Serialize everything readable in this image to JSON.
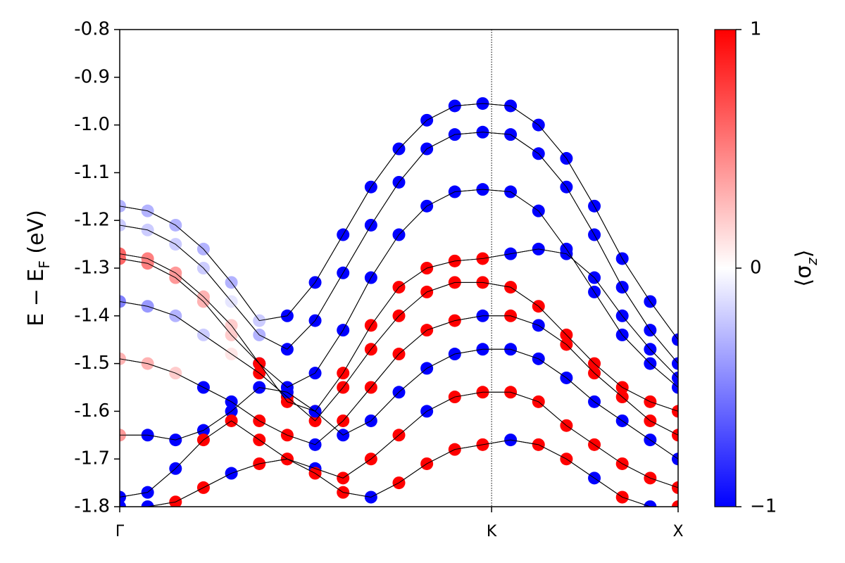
{
  "chart_data": {
    "type": "band",
    "ylabel": [
      "E − E",
      "F",
      " (eV)"
    ],
    "x": [
      0,
      0.05,
      0.1,
      0.15,
      0.2,
      0.25,
      0.3,
      0.35,
      0.4,
      0.45,
      0.5,
      0.55,
      0.6,
      0.65,
      0.7,
      0.75,
      0.8,
      0.85,
      0.9,
      0.95,
      1.0
    ],
    "xlim": [
      0,
      1
    ],
    "xticks": [
      {
        "value": 0,
        "label": "Γ"
      },
      {
        "value": 0.666,
        "label": "K"
      },
      {
        "value": 1,
        "label": "X"
      }
    ],
    "ylim": [
      -1.8,
      -0.8
    ],
    "yticks": [
      -0.8,
      -0.9,
      {
        "value": -1.0,
        "label": "-1.0"
      },
      -1.1,
      -1.2,
      -1.3,
      -1.4,
      -1.5,
      -1.6,
      -1.7,
      -1.8
    ],
    "line_color": "#000000",
    "series": [
      {
        "values": [
          -1.17,
          -1.18,
          -1.21,
          -1.26,
          -1.33,
          -1.41,
          -1.4,
          -1.33,
          -1.23,
          -1.13,
          -1.05,
          -0.99,
          -0.96,
          -0.955,
          -0.96,
          -1.0,
          -1.07,
          -1.17,
          -1.28,
          -1.37,
          -1.45
        ],
        "sz": [
          -0.3,
          -0.3,
          -0.3,
          -0.3,
          -0.3,
          -0.2,
          -1,
          -1,
          -1,
          -1,
          -1,
          -1,
          -1,
          -1,
          -1,
          -1,
          -1,
          -1,
          -1,
          -1,
          -1
        ]
      },
      {
        "values": [
          -1.21,
          -1.22,
          -1.25,
          -1.3,
          -1.37,
          -1.44,
          -1.47,
          -1.41,
          -1.31,
          -1.21,
          -1.12,
          -1.05,
          -1.02,
          -1.015,
          -1.02,
          -1.06,
          -1.13,
          -1.23,
          -1.34,
          -1.43,
          -1.5
        ],
        "sz": [
          -0.2,
          -0.2,
          -0.2,
          -0.2,
          -0.1,
          -0.3,
          -1,
          -1,
          -1,
          -1,
          -1,
          -1,
          -1,
          -1,
          -1,
          -1,
          -1,
          -1,
          -1,
          -1,
          -1
        ]
      },
      {
        "values": [
          -1.28,
          -1.29,
          -1.32,
          -1.37,
          -1.44,
          -1.5,
          -1.55,
          -1.52,
          -1.43,
          -1.32,
          -1.23,
          -1.17,
          -1.14,
          -1.135,
          -1.14,
          -1.18,
          -1.26,
          -1.35,
          -1.44,
          -1.5,
          -1.55
        ],
        "sz": [
          0.6,
          0.5,
          0.4,
          0.3,
          0.2,
          -1,
          -1,
          -1,
          -1,
          -1,
          -1,
          -1,
          -1,
          -1,
          -1,
          -1,
          -1,
          -1,
          -1,
          -1,
          -1
        ]
      },
      {
        "values": [
          -1.27,
          -1.28,
          -1.31,
          -1.36,
          -1.42,
          -1.5,
          -1.58,
          -1.6,
          -1.52,
          -1.42,
          -1.34,
          -1.3,
          -1.285,
          -1.28,
          -1.27,
          -1.26,
          -1.27,
          -1.32,
          -1.4,
          -1.47,
          -1.53
        ],
        "sz": [
          0.6,
          0.5,
          0.4,
          0.3,
          0.2,
          1,
          1,
          1,
          1,
          1,
          1,
          1,
          1,
          1,
          -1,
          -1,
          -1,
          -1,
          -1,
          -1,
          -1
        ]
      },
      {
        "values": [
          -1.37,
          -1.38,
          -1.4,
          -1.44,
          -1.48,
          -1.52,
          -1.57,
          -1.62,
          -1.55,
          -1.47,
          -1.4,
          -1.35,
          -1.33,
          -1.33,
          -1.34,
          -1.38,
          -1.44,
          -1.5,
          -1.55,
          -1.58,
          -1.6
        ],
        "sz": [
          -0.5,
          -0.4,
          -0.3,
          -0.2,
          0.1,
          1,
          1,
          1,
          1,
          1,
          1,
          1,
          1,
          1,
          1,
          1,
          1,
          1,
          1,
          1,
          1
        ]
      },
      {
        "values": [
          -1.49,
          -1.5,
          -1.52,
          -1.55,
          -1.58,
          -1.62,
          -1.65,
          -1.67,
          -1.62,
          -1.55,
          -1.48,
          -1.43,
          -1.41,
          -1.4,
          -1.4,
          -1.42,
          -1.46,
          -1.52,
          -1.57,
          -1.62,
          -1.65
        ],
        "sz": [
          0.3,
          0.3,
          0.2,
          -1,
          -1,
          1,
          1,
          -1,
          1,
          1,
          1,
          1,
          1,
          -1,
          1,
          -1,
          1,
          1,
          1,
          1,
          1
        ]
      },
      {
        "values": [
          -1.65,
          -1.65,
          -1.66,
          -1.64,
          -1.6,
          -1.55,
          -1.56,
          -1.6,
          -1.65,
          -1.62,
          -1.56,
          -1.51,
          -1.48,
          -1.47,
          -1.47,
          -1.49,
          -1.53,
          -1.58,
          -1.62,
          -1.66,
          -1.7
        ],
        "sz": [
          0.4,
          -1,
          -1,
          -1,
          -1,
          -1,
          -1,
          -1,
          -1,
          -1,
          -1,
          -1,
          -1,
          -1,
          -1,
          -1,
          -1,
          -1,
          -1,
          -1,
          -1
        ]
      },
      {
        "values": [
          -1.78,
          -1.77,
          -1.72,
          -1.66,
          -1.62,
          -1.66,
          -1.7,
          -1.72,
          -1.74,
          -1.7,
          -1.65,
          -1.6,
          -1.57,
          -1.56,
          -1.56,
          -1.58,
          -1.63,
          -1.67,
          -1.71,
          -1.74,
          -1.76
        ],
        "sz": [
          -1,
          -1,
          -1,
          1,
          1,
          1,
          1,
          -1,
          1,
          1,
          1,
          -1,
          1,
          1,
          1,
          1,
          1,
          1,
          1,
          1,
          1
        ]
      },
      {
        "values": [
          -1.8,
          -1.8,
          -1.79,
          -1.76,
          -1.73,
          -1.71,
          -1.7,
          -1.73,
          -1.77,
          -1.78,
          -1.75,
          -1.71,
          -1.68,
          -1.67,
          -1.66,
          -1.67,
          -1.7,
          -1.74,
          -1.78,
          -1.8,
          -1.8
        ],
        "sz": [
          -1,
          -1,
          1,
          1,
          -1,
          1,
          1,
          1,
          1,
          -1,
          1,
          1,
          1,
          1,
          -1,
          1,
          1,
          -1,
          1,
          -1,
          1
        ]
      }
    ],
    "colorbar": {
      "cmap": [
        "#0000ff",
        "#ffffff",
        "#ff0000"
      ],
      "lim": [
        -1,
        1
      ],
      "ticks": [
        1,
        0,
        {
          "value": -1,
          "label": "−1"
        }
      ],
      "label": [
        "⟨σ",
        "z",
        "⟩"
      ]
    }
  }
}
